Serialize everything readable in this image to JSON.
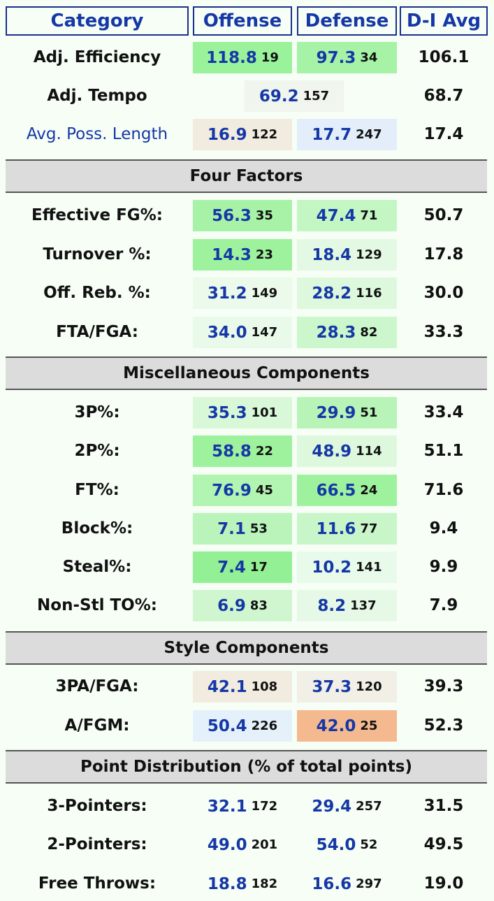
{
  "header": {
    "category": "Category",
    "offense": "Offense",
    "defense": "Defense",
    "avg": "D-I Avg"
  },
  "rows": [
    {
      "label": "Adj. Efficiency",
      "off": "118.8",
      "off_rank": "19",
      "def": "97.3",
      "def_rank": "34",
      "avg": "106.1",
      "off_color": "#9af29a",
      "def_color": "#a6f2a6"
    },
    {
      "label": "Adj. Tempo",
      "tempo": "69.2",
      "tempo_rank": "157",
      "avg": "68.7",
      "tempo_color": "#f0f5ee"
    },
    {
      "label": "Avg. Poss. Length",
      "off": "16.9",
      "off_rank": "122",
      "def": "17.7",
      "def_rank": "247",
      "avg": "17.4",
      "off_color": "#f1ebe0",
      "def_color": "#e4eefb"
    },
    {
      "section": "Four Factors"
    },
    {
      "label": "Effective FG%:",
      "off": "56.3",
      "off_rank": "35",
      "def": "47.4",
      "def_rank": "71",
      "avg": "50.7",
      "off_color": "#a8f2a8",
      "def_color": "#c4f6c4"
    },
    {
      "label": "Turnover %:",
      "off": "14.3",
      "off_rank": "23",
      "def": "18.4",
      "def_rank": "129",
      "avg": "17.8",
      "off_color": "#9ef29e",
      "def_color": "#e4f9e4"
    },
    {
      "label": "Off. Reb. %:",
      "off": "31.2",
      "off_rank": "149",
      "def": "28.2",
      "def_rank": "116",
      "avg": "30.0",
      "off_color": "#ebfaeb",
      "def_color": "#def8de"
    },
    {
      "label": "FTA/FGA:",
      "off": "34.0",
      "off_rank": "147",
      "def": "28.3",
      "def_rank": "82",
      "avg": "33.3",
      "off_color": "#eafaea",
      "def_color": "#ccf6cc"
    },
    {
      "section": "Miscellaneous Components"
    },
    {
      "label": "3P%:",
      "off": "35.3",
      "off_rank": "101",
      "def": "29.9",
      "def_rank": "51",
      "avg": "33.4",
      "off_color": "#d8f8d8",
      "def_color": "#b8f4b8"
    },
    {
      "label": "2P%:",
      "off": "58.8",
      "off_rank": "22",
      "def": "48.9",
      "def_rank": "114",
      "avg": "51.1",
      "off_color": "#9ef29e",
      "def_color": "#def8de"
    },
    {
      "label": "FT%:",
      "off": "76.9",
      "off_rank": "45",
      "def": "66.5",
      "def_rank": "24",
      "avg": "71.6",
      "off_color": "#b2f4b2",
      "def_color": "#9ef29e"
    },
    {
      "label": "Block%:",
      "off": "7.1",
      "off_rank": "53",
      "def": "11.6",
      "def_rank": "77",
      "avg": "9.4",
      "off_color": "#baf4ba",
      "def_color": "#c8f6c8"
    },
    {
      "label": "Steal%:",
      "off": "7.4",
      "off_rank": "17",
      "def": "10.2",
      "def_rank": "141",
      "avg": "9.9",
      "off_color": "#94f094",
      "def_color": "#e8faea"
    },
    {
      "label": "Non-Stl TO%:",
      "off": "6.9",
      "off_rank": "83",
      "def": "8.2",
      "def_rank": "137",
      "avg": "7.9",
      "off_color": "#cff6cf",
      "def_color": "#e6f9e6"
    },
    {
      "section": "Style Components"
    },
    {
      "label": "3PA/FGA:",
      "off": "42.1",
      "off_rank": "108",
      "def": "37.3",
      "def_rank": "120",
      "avg": "39.3",
      "off_color": "#f1ebe0",
      "def_color": "#f1efe6"
    },
    {
      "label": "A/FGM:",
      "off": "50.4",
      "off_rank": "226",
      "def": "42.0",
      "def_rank": "25",
      "avg": "52.3",
      "off_color": "#e4f1fb",
      "def_color": "#f5b990"
    },
    {
      "section": "Point Distribution (% of total points)"
    },
    {
      "label": "3-Pointers:",
      "off": "32.1",
      "off_rank": "172",
      "def": "29.4",
      "def_rank": "257",
      "avg": "31.5"
    },
    {
      "label": "2-Pointers:",
      "off": "49.0",
      "off_rank": "201",
      "def": "54.0",
      "def_rank": "52",
      "avg": "49.5"
    },
    {
      "label": "Free Throws:",
      "off": "18.8",
      "off_rank": "182",
      "def": "16.6",
      "def_rank": "297",
      "avg": "19.0"
    }
  ]
}
